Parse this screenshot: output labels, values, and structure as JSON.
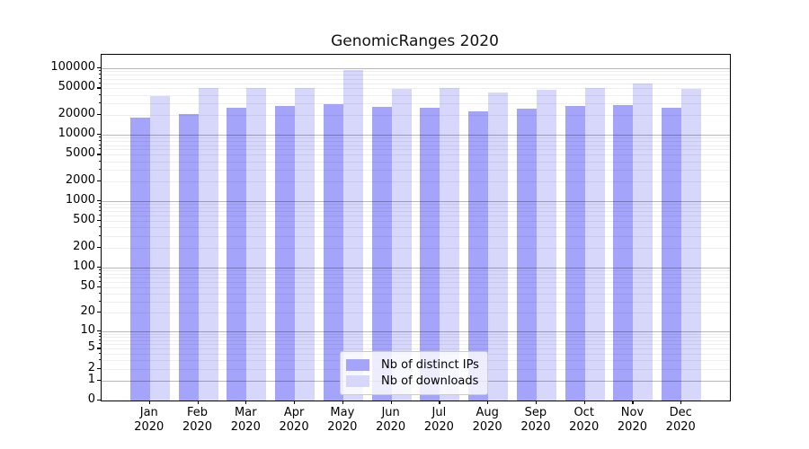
{
  "title": "GenomicRanges 2020",
  "chart_data": {
    "type": "bar",
    "title": "GenomicRanges 2020",
    "categories": [
      "Jan",
      "Feb",
      "Mar",
      "Apr",
      "May",
      "Jun",
      "Jul",
      "Aug",
      "Sep",
      "Oct",
      "Nov",
      "Dec"
    ],
    "year_label": "2020",
    "series": [
      {
        "name": "Nb of distinct IPs",
        "color": "#a4a4fb",
        "values": [
          18000,
          20400,
          25300,
          27000,
          29000,
          26700,
          25600,
          22200,
          24600,
          27200,
          28100,
          25900
        ]
      },
      {
        "name": "Nb of downloads",
        "color": "#d7d7fc",
        "values": [
          38000,
          50000,
          50500,
          50000,
          93000,
          49000,
          51000,
          43500,
          47000,
          51000,
          59500,
          48500
        ]
      }
    ],
    "yticks": [
      100000,
      50000,
      20000,
      10000,
      5000,
      2000,
      1000,
      500,
      200,
      100,
      50,
      20,
      10,
      5,
      2,
      1,
      0
    ],
    "ylim": [
      0,
      160000
    ],
    "yscale": "log10(x+1)",
    "grid": true,
    "legend_position": "bottom-center",
    "axis_color": "#000000",
    "background": "#ffffff"
  }
}
